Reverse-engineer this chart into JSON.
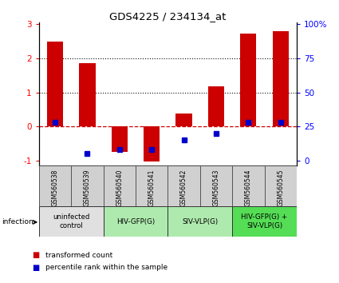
{
  "title": "GDS4225 / 234134_at",
  "samples": [
    "GSM560538",
    "GSM560539",
    "GSM560540",
    "GSM560541",
    "GSM560542",
    "GSM560543",
    "GSM560544",
    "GSM560545"
  ],
  "red_values": [
    2.5,
    1.85,
    -0.75,
    -1.02,
    0.38,
    1.18,
    2.72,
    2.8
  ],
  "blue_percentile": [
    28,
    5,
    8,
    8,
    15,
    20,
    28,
    28
  ],
  "ylim": [
    -1.15,
    3.05
  ],
  "yticks_left": [
    -1,
    0,
    1,
    2,
    3
  ],
  "yticks_right": [
    0,
    25,
    50,
    75,
    100
  ],
  "groups": [
    {
      "label": "uninfected\ncontrol",
      "start": 0,
      "end": 2,
      "color": "#e0e0e0"
    },
    {
      "label": "HIV-GFP(G)",
      "start": 2,
      "end": 4,
      "color": "#aeeaae"
    },
    {
      "label": "SIV-VLP(G)",
      "start": 4,
      "end": 6,
      "color": "#aeeaae"
    },
    {
      "label": "HIV-GFP(G) +\nSIV-VLP(G)",
      "start": 6,
      "end": 8,
      "color": "#55dd55"
    }
  ],
  "infection_label": "infection",
  "legend_red": "transformed count",
  "legend_blue": "percentile rank within the sample",
  "bar_color": "#cc0000",
  "dot_color": "#0000cc",
  "hline_color": "#cc0000",
  "dotted_line_color": "#111111",
  "sample_bg": "#d0d0d0"
}
